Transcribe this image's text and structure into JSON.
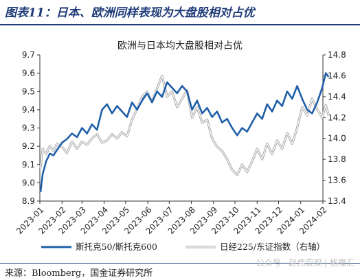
{
  "header": {
    "figure_title": "图表11：日本、欧洲同样表现为大盘股相对占优"
  },
  "footer": {
    "source": "来源：Bloomberg，国金证券研究所",
    "watermark": "公众号 · 赵伟宏观 | 格隆汇"
  },
  "colors": {
    "series_1": "#1f5fa8",
    "series_2": "#a9a9a9",
    "accent": "#1f3b78"
  },
  "chart_data": {
    "type": "line",
    "title": "欧洲与日本均大盘股相对占优",
    "x_ticks": [
      "2023-01",
      "2023-02",
      "2023-03",
      "2023-04",
      "2023-05",
      "2023-06",
      "2023-07",
      "2023-08",
      "2023-09",
      "2023-10",
      "2023-11",
      "2023-12",
      "2024-01",
      "2024-02"
    ],
    "y_left": {
      "ticks": [
        "8.9",
        "9.0",
        "9.1",
        "9.2",
        "9.3",
        "9.4",
        "9.5",
        "9.6",
        "9.7"
      ],
      "range": [
        8.9,
        9.7
      ]
    },
    "y_right": {
      "ticks": [
        "13.4",
        "13.6",
        "13.8",
        "14.0",
        "14.2",
        "14.4",
        "14.6",
        "14.8"
      ],
      "range": [
        13.4,
        14.8
      ]
    },
    "grid": false,
    "legend_position": "bottom",
    "series": [
      {
        "name": "斯托克50/斯托克600",
        "axis": "left",
        "color": "#1f5fa8",
        "x": [
          "2023-01-02",
          "2023-01-05",
          "2023-01-10",
          "2023-01-15",
          "2023-01-20",
          "2023-01-25",
          "2023-02-01",
          "2023-02-08",
          "2023-02-15",
          "2023-02-22",
          "2023-03-01",
          "2023-03-08",
          "2023-03-15",
          "2023-03-22",
          "2023-03-29",
          "2023-04-05",
          "2023-04-12",
          "2023-04-19",
          "2023-04-26",
          "2023-05-03",
          "2023-05-10",
          "2023-05-17",
          "2023-05-24",
          "2023-05-31",
          "2023-06-07",
          "2023-06-14",
          "2023-06-21",
          "2023-06-28",
          "2023-07-05",
          "2023-07-12",
          "2023-07-19",
          "2023-07-26",
          "2023-08-02",
          "2023-08-09",
          "2023-08-16",
          "2023-08-23",
          "2023-08-30",
          "2023-09-06",
          "2023-09-13",
          "2023-09-20",
          "2023-09-27",
          "2023-10-04",
          "2023-10-11",
          "2023-10-18",
          "2023-10-25",
          "2023-11-01",
          "2023-11-08",
          "2023-11-15",
          "2023-11-22",
          "2023-11-29",
          "2023-12-06",
          "2023-12-13",
          "2023-12-20",
          "2023-12-27",
          "2024-01-03",
          "2024-01-10",
          "2024-01-17",
          "2024-01-24",
          "2024-01-31",
          "2024-02-05",
          "2024-02-09"
        ],
        "values": [
          8.95,
          9.05,
          9.12,
          9.16,
          9.15,
          9.18,
          9.22,
          9.24,
          9.27,
          9.25,
          9.3,
          9.27,
          9.32,
          9.29,
          9.4,
          9.43,
          9.38,
          9.42,
          9.39,
          9.36,
          9.44,
          9.4,
          9.45,
          9.49,
          9.44,
          9.5,
          9.47,
          9.55,
          9.52,
          9.49,
          9.53,
          9.5,
          9.4,
          9.45,
          9.38,
          9.41,
          9.36,
          9.39,
          9.33,
          9.35,
          9.3,
          9.26,
          9.3,
          9.28,
          9.33,
          9.38,
          9.35,
          9.43,
          9.39,
          9.45,
          9.42,
          9.5,
          9.46,
          9.53,
          9.46,
          9.4,
          9.38,
          9.44,
          9.52,
          9.6,
          9.58
        ]
      },
      {
        "name": "日经225/东证指数（右轴）",
        "axis": "right",
        "color": "#a9a9a9",
        "x": [
          "2023-01-02",
          "2023-01-05",
          "2023-01-10",
          "2023-01-15",
          "2023-01-20",
          "2023-01-25",
          "2023-02-01",
          "2023-02-08",
          "2023-02-15",
          "2023-02-22",
          "2023-03-01",
          "2023-03-08",
          "2023-03-15",
          "2023-03-22",
          "2023-03-29",
          "2023-04-05",
          "2023-04-12",
          "2023-04-19",
          "2023-04-26",
          "2023-05-03",
          "2023-05-10",
          "2023-05-17",
          "2023-05-24",
          "2023-05-31",
          "2023-06-07",
          "2023-06-14",
          "2023-06-21",
          "2023-06-28",
          "2023-07-05",
          "2023-07-12",
          "2023-07-19",
          "2023-07-26",
          "2023-08-02",
          "2023-08-09",
          "2023-08-16",
          "2023-08-23",
          "2023-08-30",
          "2023-09-06",
          "2023-09-13",
          "2023-09-20",
          "2023-09-27",
          "2023-10-04",
          "2023-10-11",
          "2023-10-18",
          "2023-10-25",
          "2023-11-01",
          "2023-11-08",
          "2023-11-15",
          "2023-11-22",
          "2023-11-29",
          "2023-12-06",
          "2023-12-13",
          "2023-12-20",
          "2023-12-27",
          "2024-01-03",
          "2024-01-10",
          "2024-01-17",
          "2024-01-24",
          "2024-01-31",
          "2024-02-05",
          "2024-02-09"
        ],
        "values": [
          13.72,
          13.9,
          13.85,
          13.93,
          13.88,
          13.95,
          13.92,
          13.86,
          13.97,
          13.9,
          13.97,
          13.94,
          14.0,
          14.04,
          13.96,
          13.98,
          14.04,
          14.0,
          14.06,
          14.02,
          14.18,
          14.28,
          14.4,
          14.45,
          14.35,
          14.48,
          14.6,
          14.4,
          14.45,
          14.3,
          14.38,
          14.46,
          14.2,
          14.3,
          14.15,
          14.18,
          14.0,
          13.92,
          13.88,
          13.8,
          13.7,
          13.65,
          13.75,
          13.68,
          13.78,
          13.9,
          13.8,
          13.95,
          13.85,
          13.98,
          13.9,
          14.05,
          13.95,
          14.1,
          14.3,
          14.22,
          14.38,
          14.28,
          14.2,
          14.32,
          14.22
        ]
      }
    ]
  }
}
